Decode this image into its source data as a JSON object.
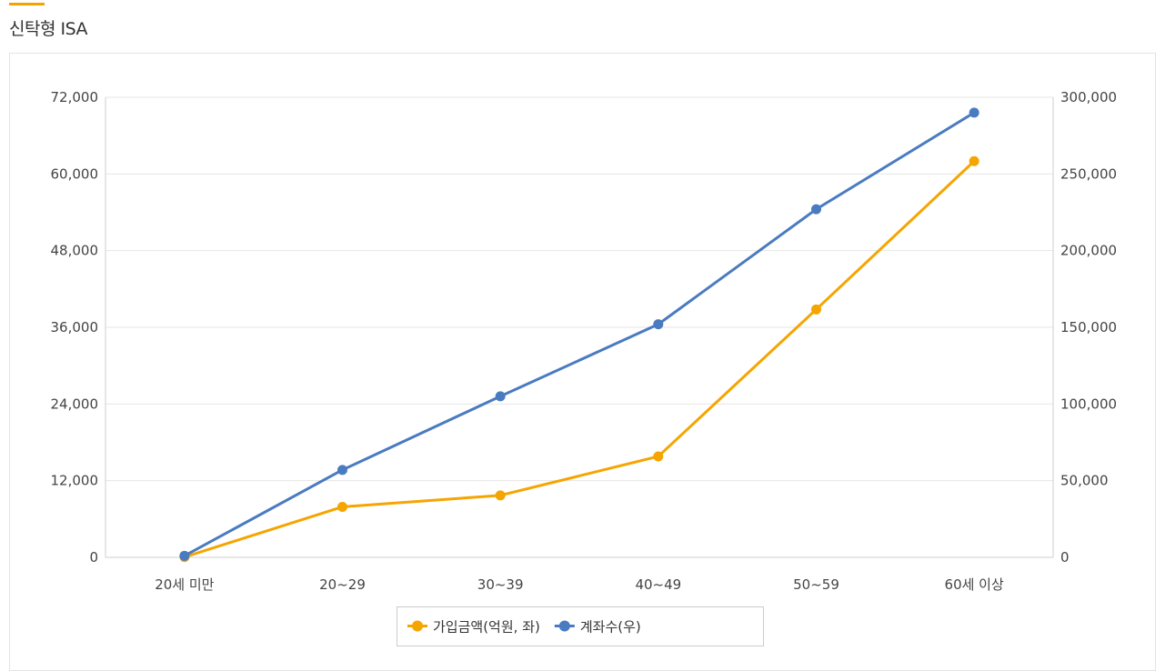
{
  "section": {
    "title": "신탁형 ISA"
  },
  "chart_data": {
    "type": "line",
    "categories": [
      "20세 미만",
      "20~29",
      "30~39",
      "40~49",
      "50~59",
      "60세 이상"
    ],
    "y_left_ticks": [
      "0",
      "12,000",
      "24,000",
      "36,000",
      "48,000",
      "60,000",
      "72,000"
    ],
    "y_right_ticks": [
      "0",
      "50,000",
      "100,000",
      "150,000",
      "200,000",
      "250,000",
      "300,000"
    ],
    "y_left_lim": [
      0,
      72000
    ],
    "y_right_lim": [
      0,
      300000
    ],
    "grid": true,
    "legend_position": "bottom-center",
    "series": [
      {
        "name": "가입금액(억원, 좌)",
        "axis": "left",
        "color": "#f5a500",
        "values": [
          50,
          7900,
          9700,
          15800,
          38800,
          62000
        ]
      },
      {
        "name": "계좌수(우)",
        "axis": "right",
        "color": "#4a7bc0",
        "values": [
          1000,
          57000,
          105000,
          152000,
          227000,
          290000
        ]
      }
    ]
  }
}
